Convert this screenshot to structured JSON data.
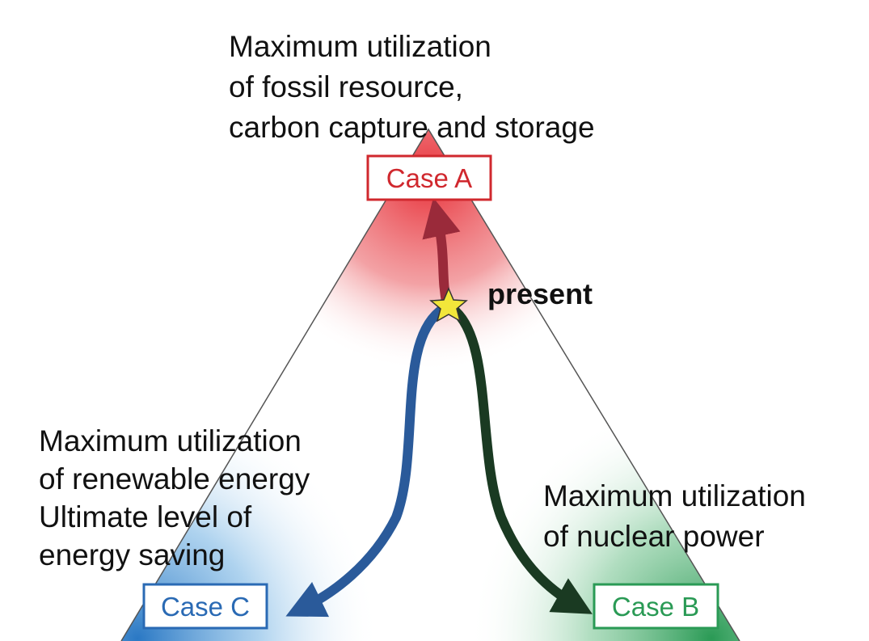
{
  "top_case": {
    "label": "Case A",
    "description": [
      "Maximum utilization",
      "of fossil resource,",
      "carbon capture and storage"
    ]
  },
  "left_case": {
    "label": "Case C",
    "description": [
      "Maximum utilization",
      "of renewable energy",
      "Ultimate level of",
      "energy saving"
    ]
  },
  "right_case": {
    "label": "Case B",
    "description": [
      "Maximum utilization",
      "of nuclear power"
    ]
  },
  "present_label": "present"
}
